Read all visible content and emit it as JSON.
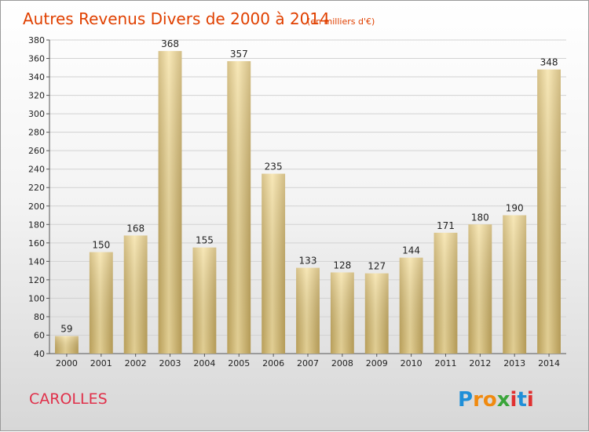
{
  "title": "Autres Revenus Divers de 2000 à 2014",
  "subtitle": "(en milliers d'€)",
  "commune": "CAROLLES",
  "logo": {
    "text": "Proxiti",
    "letters": [
      {
        "ch": "P",
        "color": "#1f8fd8"
      },
      {
        "ch": "r",
        "color": "#f08a10"
      },
      {
        "ch": "o",
        "color": "#f08a10"
      },
      {
        "ch": "x",
        "color": "#3aa53a"
      },
      {
        "ch": "i",
        "color": "#e03030"
      },
      {
        "ch": "t",
        "color": "#1f8fd8"
      },
      {
        "ch": "i",
        "color": "#e03030"
      }
    ]
  },
  "colors": {
    "title": "#e04000",
    "commune": "#e0304a",
    "bar_light": "#f3dc98",
    "bar_dark": "#c4a85e"
  },
  "chart_data": {
    "type": "bar",
    "categories": [
      "2000",
      "2001",
      "2002",
      "2003",
      "2004",
      "2005",
      "2006",
      "2007",
      "2008",
      "2009",
      "2010",
      "2011",
      "2012",
      "2013",
      "2014"
    ],
    "values": [
      59,
      150,
      168,
      368,
      155,
      357,
      235,
      133,
      128,
      127,
      144,
      171,
      180,
      190,
      348
    ],
    "ylim": [
      40,
      380
    ],
    "yticks": [
      40,
      60,
      80,
      100,
      120,
      140,
      160,
      180,
      200,
      220,
      240,
      260,
      280,
      300,
      320,
      340,
      360,
      380
    ],
    "grid": true,
    "xlabel": "",
    "ylabel": ""
  }
}
